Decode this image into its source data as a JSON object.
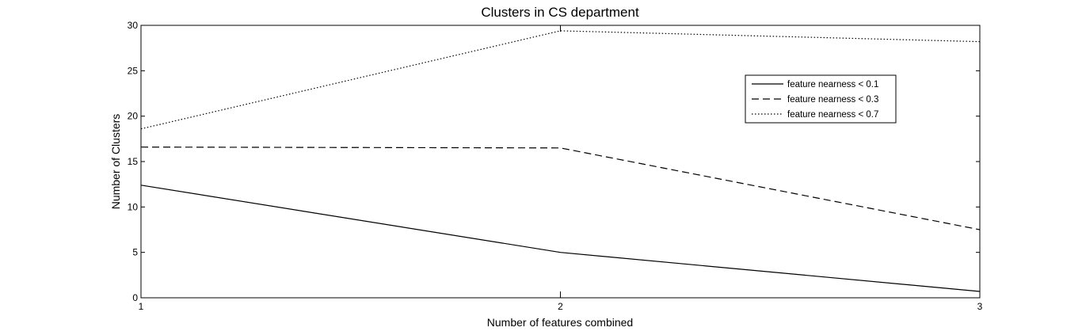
{
  "chart_data": {
    "type": "line",
    "title": "Clusters in CS department",
    "xlabel": "Number of features combined",
    "ylabel": "Number of Clusters",
    "x": [
      1,
      2,
      3
    ],
    "xlim": [
      1,
      3
    ],
    "ylim": [
      0,
      30
    ],
    "xticks": [
      "1",
      "2",
      "3"
    ],
    "yticks": [
      "0",
      "5",
      "10",
      "15",
      "20",
      "25",
      "30"
    ],
    "grid": false,
    "legend_position": "top-right",
    "series": [
      {
        "name": "feature nearness < 0.1",
        "style": "solid",
        "values": [
          12.4,
          5.0,
          0.7
        ]
      },
      {
        "name": "feature nearness < 0.3",
        "style": "dashed",
        "values": [
          16.6,
          16.5,
          7.5
        ]
      },
      {
        "name": "feature nearness < 0.7",
        "style": "dotted",
        "values": [
          18.6,
          29.4,
          28.2
        ]
      }
    ],
    "colors": {
      "line": "#000000",
      "background": "#ffffff"
    }
  }
}
